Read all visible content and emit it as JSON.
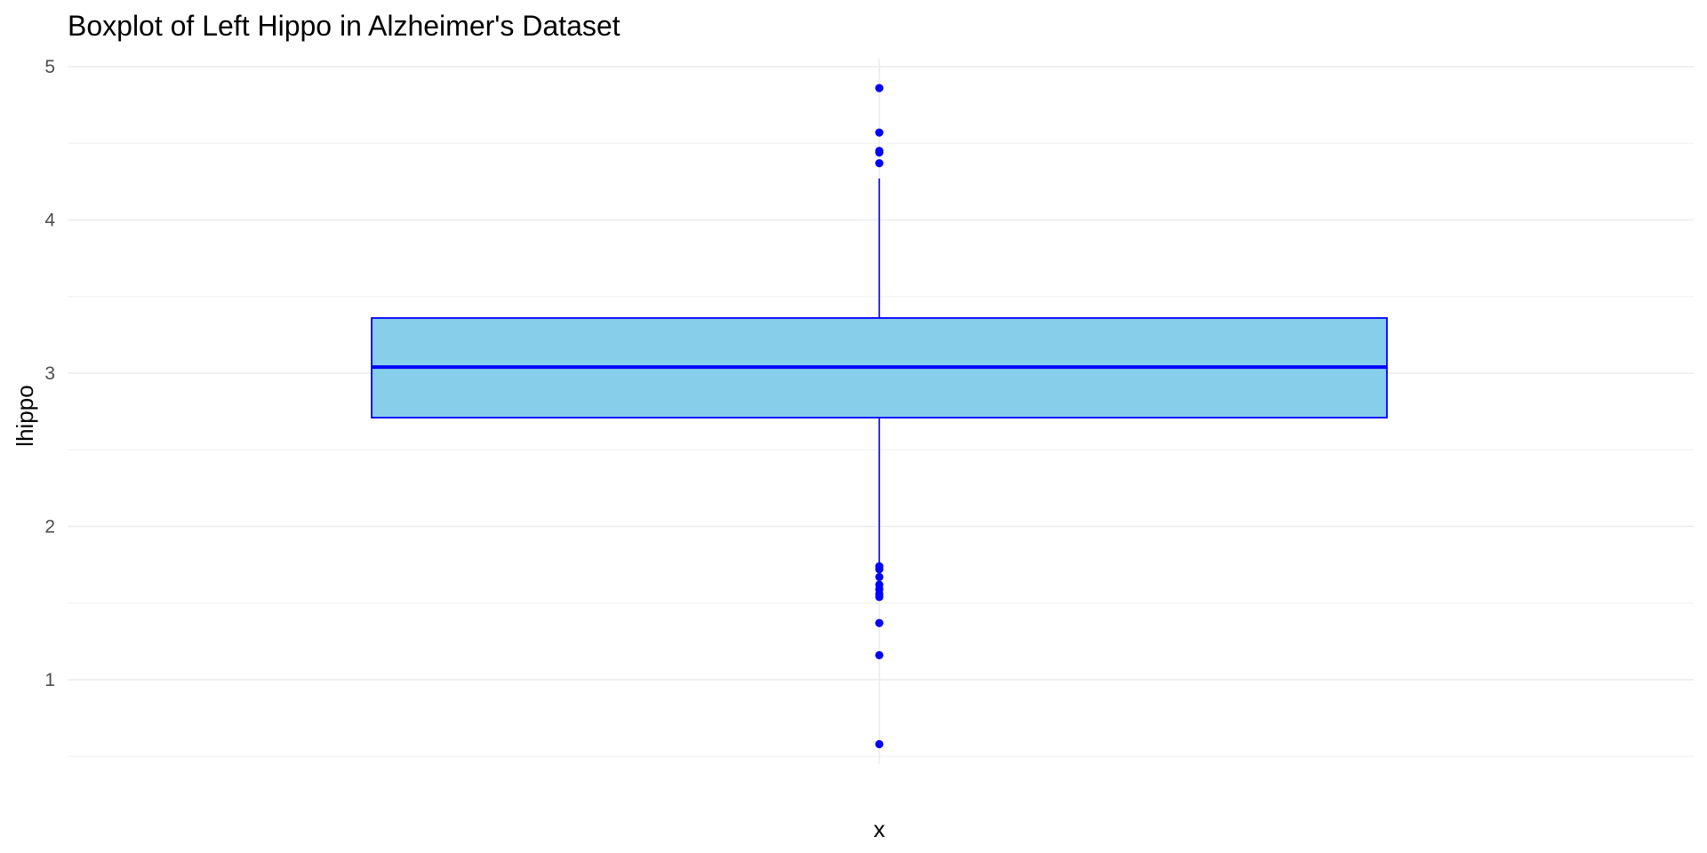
{
  "chart_data": {
    "type": "boxplot",
    "title": "Boxplot of Left Hippo in Alzheimer's Dataset",
    "xlabel": "x",
    "ylabel": "lhippo",
    "ylim": [
      0.45,
      5.05
    ],
    "y_ticks": [
      1,
      2,
      3,
      4,
      5
    ],
    "y_tick_labels": [
      "1",
      "2",
      "3",
      "4",
      "5"
    ],
    "y_minor_ticks": [
      0.5,
      1.5,
      2.5,
      3.5,
      4.5
    ],
    "grid": true,
    "stats": {
      "q1": 2.71,
      "median": 3.04,
      "q3": 3.36,
      "whisker_low": 1.76,
      "whisker_high": 4.27
    },
    "outliers": [
      4.86,
      4.57,
      4.45,
      4.44,
      4.37,
      1.74,
      1.72,
      1.67,
      1.62,
      1.59,
      1.56,
      1.54,
      1.37,
      1.16,
      0.58
    ],
    "colors": {
      "box_fill": "#87ceeb",
      "box_line": "#0000ff",
      "outlier": "#0000ff"
    }
  }
}
